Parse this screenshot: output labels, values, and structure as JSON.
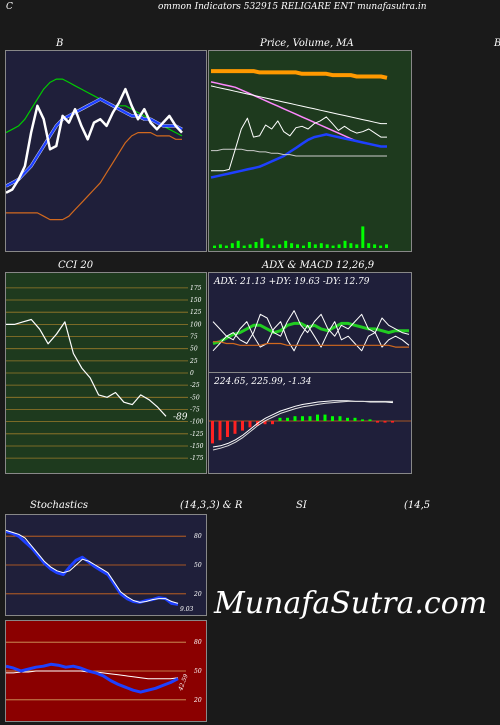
{
  "header": {
    "left_letter": "C",
    "title": "ommon  Indicators 532915 RELIGARE ENT munafasutra.in"
  },
  "labels": {
    "bb": "B",
    "price": "Price,  Volume,  MA",
    "price_right": "B",
    "cci": "CCI 20",
    "adx_macd": "ADX  & MACD 12,26,9",
    "stoch": "Stochastics",
    "stoch_params": "(14,3,3) & R",
    "rsi": "SI",
    "rsi_params": "(14,5"
  },
  "watermark": "MunafaSutra.com",
  "colors": {
    "bg": "#1a1a1a",
    "navy_panel": "#1f1f3a",
    "green_panel": "#1e3a1e",
    "red_panel": "#8b0000",
    "blue_line": "#1e40ff",
    "green_line": "#22cc22",
    "orange_line": "#d2691e",
    "bar_green": "#00ff00"
  },
  "chart_data": [
    {
      "type": "line",
      "title": "B",
      "series": [
        {
          "values": [
            108,
            109,
            110,
            112,
            115,
            118,
            121,
            123,
            124,
            124,
            123,
            122,
            121,
            120,
            119,
            118,
            117,
            116,
            116,
            116,
            115,
            114,
            113,
            112,
            111,
            110,
            109,
            108,
            107
          ]
        },
        {
          "values": [
            92,
            93,
            94,
            96,
            98,
            101,
            104,
            107,
            110,
            112,
            113,
            114,
            115,
            116,
            117,
            118,
            117,
            116,
            115,
            114,
            113,
            113,
            112,
            112,
            111,
            110,
            110,
            110,
            109
          ]
        },
        {
          "values": [
            84,
            84,
            84,
            84,
            84,
            84,
            83,
            82,
            82,
            82,
            83,
            85,
            87,
            89,
            91,
            93,
            96,
            99,
            102,
            105,
            107,
            108,
            108,
            108,
            107,
            107,
            107,
            106,
            106
          ]
        },
        {
          "values": [
            90,
            91,
            94,
            98,
            108,
            116,
            112,
            103,
            104,
            113,
            111,
            115,
            110,
            106,
            111,
            112,
            110,
            114,
            117,
            121,
            116,
            112,
            115,
            111,
            109,
            111,
            113,
            110,
            108
          ]
        }
      ]
    },
    {
      "type": "line",
      "title": "Price,  Volume,  MA",
      "series": [
        {
          "values": [
            209,
            209,
            209,
            209,
            209,
            209,
            209,
            209,
            208,
            208,
            208,
            208,
            208,
            208,
            208,
            207,
            207,
            207,
            207,
            207,
            206,
            206,
            206,
            206,
            205,
            205,
            205,
            205,
            205,
            204
          ]
        },
        {
          "values": [
            201,
            200,
            199,
            198,
            197,
            195,
            193,
            191,
            189,
            187,
            185,
            183,
            181,
            179,
            177,
            175,
            173,
            171,
            169,
            167,
            165,
            163,
            161,
            159,
            157,
            156,
            155,
            154,
            153,
            153
          ]
        },
        {
          "values": [
            198,
            197,
            196,
            195,
            194,
            193,
            192,
            191,
            190,
            189,
            188,
            187,
            186,
            185,
            184,
            183,
            182,
            181,
            180,
            179,
            178,
            177,
            176,
            175,
            174,
            173,
            172,
            171,
            170,
            170
          ]
        },
        {
          "values": [
            130,
            131,
            132,
            133,
            134,
            135,
            136,
            137,
            138,
            140,
            142,
            144,
            146,
            149,
            152,
            155,
            158,
            160,
            161,
            162,
            161,
            160,
            159,
            158,
            157,
            156,
            155,
            154,
            153,
            153
          ]
        },
        {
          "values": [
            150,
            150,
            151,
            151,
            151,
            151,
            150,
            150,
            149,
            149,
            148,
            148,
            147,
            147,
            146,
            146,
            146,
            146,
            146,
            146,
            146,
            146,
            146,
            146,
            146,
            146,
            146,
            146,
            146,
            146
          ]
        },
        {
          "values": [
            135,
            135,
            135,
            136,
            151,
            166,
            174,
            160,
            161,
            169,
            166,
            172,
            164,
            161,
            167,
            168,
            166,
            170,
            172,
            175,
            170,
            165,
            168,
            165,
            163,
            164,
            166,
            163,
            160,
            160
          ]
        }
      ],
      "volume": [
        2,
        3,
        2,
        4,
        6,
        2,
        3,
        5,
        8,
        3,
        2,
        3,
        6,
        4,
        3,
        2,
        5,
        3,
        4,
        3,
        2,
        3,
        6,
        4,
        3,
        18,
        4,
        3,
        2,
        3
      ]
    },
    {
      "type": "line",
      "title": "CCI 20",
      "yticks": [
        175,
        150,
        125,
        100,
        75,
        50,
        25,
        0,
        -25,
        -50,
        -75,
        -100,
        -125,
        -150,
        -175
      ],
      "ylim": [
        -185,
        185
      ],
      "series": [
        {
          "values": [
            100,
            100,
            105,
            110,
            90,
            60,
            80,
            105,
            40,
            10,
            -10,
            -45,
            -50,
            -40,
            -60,
            -65,
            -45,
            -55,
            -70,
            -89
          ]
        }
      ],
      "last_value_label": "-89"
    },
    {
      "type": "line",
      "title": "ADX  & MACD 12,26,9",
      "adx_text": "ADX: 21.13  +DY: 19.63  -DY: 12.79",
      "series": [
        {
          "values": [
            14,
            15,
            17,
            19,
            20,
            22,
            24,
            24,
            22,
            20,
            21,
            24,
            25,
            25,
            23,
            24,
            22,
            21,
            23,
            25,
            25,
            24,
            23,
            22,
            22,
            21,
            20,
            21,
            21,
            21
          ]
        },
        {
          "values": [
            10,
            14,
            18,
            20,
            16,
            14,
            20,
            30,
            28,
            20,
            18,
            26,
            32,
            24,
            20,
            26,
            30,
            22,
            18,
            24,
            22,
            26,
            30,
            22,
            20,
            28,
            24,
            22,
            20,
            19
          ]
        },
        {
          "values": [
            26,
            22,
            18,
            16,
            22,
            26,
            18,
            12,
            14,
            22,
            26,
            16,
            10,
            18,
            24,
            18,
            12,
            20,
            26,
            16,
            18,
            14,
            10,
            18,
            20,
            12,
            16,
            18,
            16,
            13
          ]
        },
        {
          "values": [
            15,
            15,
            14,
            14,
            13,
            13,
            13,
            13,
            14,
            14,
            14,
            13,
            13,
            13,
            13,
            13,
            13,
            13,
            13,
            13,
            13,
            13,
            13,
            13,
            13,
            13,
            13,
            12,
            12,
            12
          ]
        }
      ]
    },
    {
      "type": "line",
      "title": "MACD 12,26,9",
      "macd_text": "224.65,  225.99,  -1.34",
      "series": [
        {
          "values": [
            150,
            152,
            156,
            162,
            170,
            180,
            190,
            198,
            204,
            210,
            214,
            218,
            221,
            223,
            225,
            226,
            227,
            227,
            227,
            226,
            226,
            225,
            225,
            225,
            224
          ]
        },
        {
          "values": [
            145,
            148,
            152,
            158,
            166,
            176,
            186,
            194,
            200,
            206,
            210,
            214,
            217,
            219,
            221,
            223,
            224,
            225,
            226,
            226,
            226,
            226,
            226,
            226,
            226
          ]
        }
      ],
      "histogram": [
        -14,
        -12,
        -10,
        -8,
        -6,
        -4,
        -3,
        -2,
        -2,
        2,
        2,
        3,
        3,
        3,
        4,
        4,
        3,
        3,
        2,
        2,
        1,
        1,
        -1,
        -1,
        -1
      ]
    },
    {
      "type": "line",
      "title": "Stochastics",
      "subtitle": "(14,3,3)",
      "yticks": [
        80,
        50,
        20
      ],
      "ylim": [
        0,
        100
      ],
      "last_value_label": "9.03",
      "series": [
        {
          "values": [
            85,
            83,
            80,
            74,
            68,
            60,
            52,
            46,
            42,
            40,
            48,
            55,
            58,
            53,
            48,
            44,
            40,
            30,
            20,
            15,
            12,
            11,
            13,
            14,
            16,
            15,
            10,
            9
          ]
        },
        {
          "values": [
            86,
            84,
            82,
            78,
            70,
            62,
            54,
            48,
            44,
            42,
            44,
            50,
            56,
            54,
            50,
            46,
            42,
            32,
            22,
            17,
            13,
            11,
            12,
            14,
            15,
            15,
            12,
            10
          ]
        }
      ]
    },
    {
      "type": "line",
      "title": "RSI",
      "subtitle": "(14,5",
      "yticks": [
        80,
        50,
        20
      ],
      "ylim": [
        0,
        100
      ],
      "last_value_label": "42.59",
      "series": [
        {
          "values": [
            55,
            53,
            50,
            52,
            54,
            55,
            57,
            56,
            54,
            55,
            53,
            50,
            48,
            45,
            40,
            36,
            33,
            30,
            28,
            30,
            32,
            35,
            38,
            42
          ]
        },
        {
          "values": [
            48,
            48,
            49,
            49,
            50,
            50,
            50,
            50,
            50,
            50,
            50,
            49,
            49,
            48,
            47,
            46,
            45,
            44,
            43,
            42,
            42,
            42,
            42,
            43
          ]
        }
      ]
    }
  ]
}
